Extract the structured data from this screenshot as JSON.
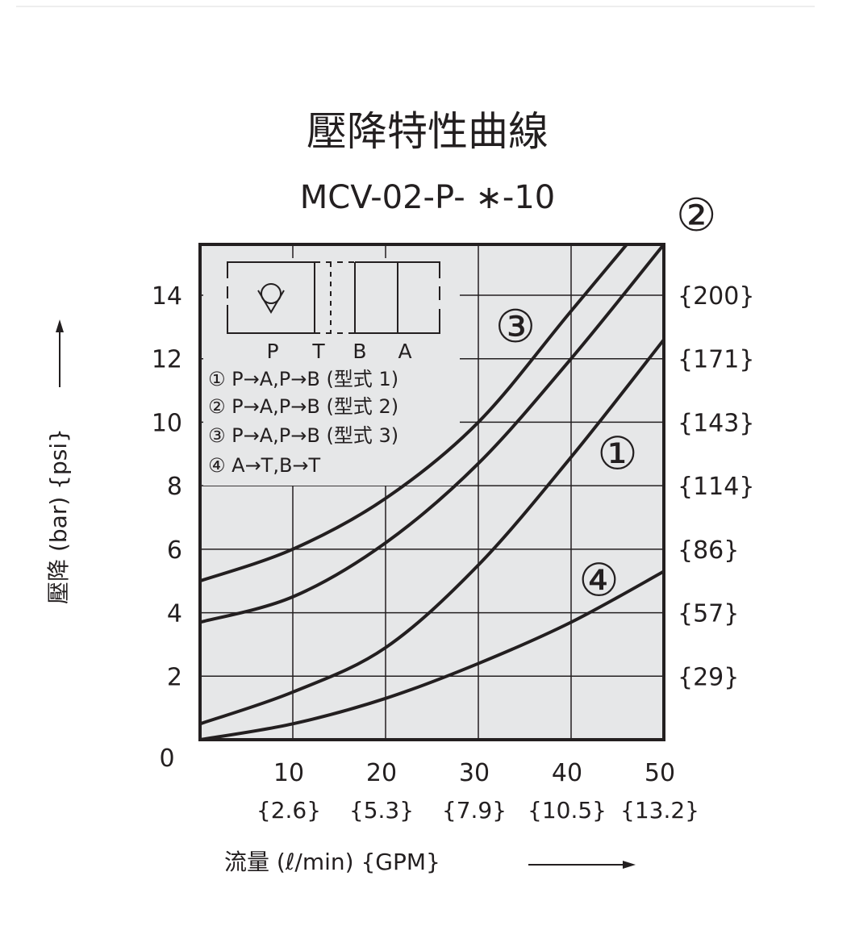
{
  "chart_data": {
    "type": "line",
    "title": "壓降特性曲線",
    "subtitle": "MCV-02-P- ∗-10",
    "xlabel": "流量 (ℓ/min) {GPM}",
    "ylabel": "壓降 (bar) {psi}",
    "xlim": [
      0,
      50
    ],
    "ylim": [
      0,
      15.6
    ],
    "grid": true,
    "x_ticks": [
      {
        "v": 10,
        "label": "10",
        "sub": "{2.6}"
      },
      {
        "v": 20,
        "label": "20",
        "sub": "{5.3}"
      },
      {
        "v": 30,
        "label": "30",
        "sub": "{7.9}"
      },
      {
        "v": 40,
        "label": "40",
        "sub": "{10.5}"
      },
      {
        "v": 50,
        "label": "50",
        "sub": "{13.2}"
      }
    ],
    "x_origin_label": "0",
    "y_ticks": [
      {
        "v": 2,
        "label": "2",
        "right": "{29}"
      },
      {
        "v": 4,
        "label": "4",
        "right": "{57}"
      },
      {
        "v": 6,
        "label": "6",
        "right": "{86}"
      },
      {
        "v": 8,
        "label": "8",
        "right": "{114}"
      },
      {
        "v": 10,
        "label": "10",
        "right": "{143}"
      },
      {
        "v": 12,
        "label": "12",
        "right": "{171}"
      },
      {
        "v": 14,
        "label": "14",
        "right": "{200}"
      }
    ],
    "series": [
      {
        "name": "①",
        "x": [
          0,
          10,
          20,
          30,
          40,
          50
        ],
        "y": [
          0.5,
          1.5,
          2.9,
          5.5,
          8.9,
          12.6
        ],
        "label_pos": [
          45,
          9.0
        ]
      },
      {
        "name": "②",
        "x": [
          0,
          10,
          20,
          30,
          40,
          50
        ],
        "y": [
          3.7,
          4.5,
          6.2,
          8.7,
          12.0,
          15.6
        ],
        "label_pos": [
          53.5,
          16.5
        ]
      },
      {
        "name": "③",
        "x": [
          0,
          10,
          20,
          30,
          40,
          50
        ],
        "y": [
          5.0,
          6.0,
          7.6,
          10.0,
          13.5,
          17.0
        ],
        "label_pos": [
          34,
          13.0
        ]
      },
      {
        "name": "④",
        "x": [
          0,
          10,
          20,
          30,
          40,
          50
        ],
        "y": [
          0.0,
          0.5,
          1.3,
          2.4,
          3.7,
          5.3
        ],
        "label_pos": [
          43,
          5.0
        ]
      }
    ],
    "legend": {
      "items": [
        "① P→A,P→B (型式 1)",
        "② P→A,P→B (型式 2)",
        "③ P→A,P→B (型式 3)",
        "④ A→T,B→T"
      ],
      "symbol_ports": [
        "P",
        "T",
        "B",
        "A"
      ]
    }
  }
}
